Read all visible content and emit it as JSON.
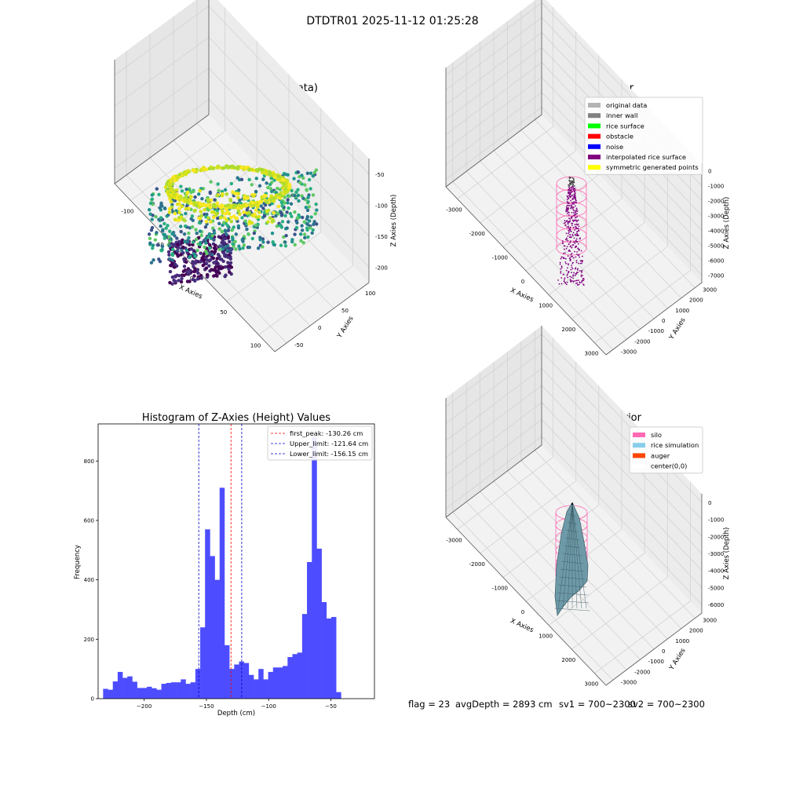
{
  "figure": {
    "suptitle": "DTDTR01 2025-11-12 01:25:28",
    "footer": {
      "flag": "flag = 23",
      "avg_depth": "avgDepth = 2893 cm",
      "sv1": "sv1 = 700~2300",
      "sv2": "sv2 = 700~2300"
    }
  },
  "chart_data": [
    {
      "type": "scatter",
      "projection": "3d",
      "title": "3D Plot of Silo Interior(row data)",
      "xlabel": "X Axies",
      "ylabel": "Y Axies",
      "zlabel": "Z Axies (Depth)",
      "x_ticks": [
        "-100",
        "-50",
        "0",
        "50",
        "100"
      ],
      "y_ticks": [
        "-50",
        "0",
        "50",
        "100"
      ],
      "z_ticks": [
        "-50",
        "-100",
        "-150",
        "-200"
      ],
      "colormap": "viridis (by depth)",
      "grid": true
    },
    {
      "type": "scatter",
      "projection": "3d",
      "title": "3D classify of Silo Interior",
      "xlabel": "X Axies",
      "ylabel": "Y Axies",
      "zlabel": "Z Axies (Depth)",
      "x_ticks": [
        "-3000",
        "-2000",
        "-1000",
        "0",
        "1000",
        "2000",
        "3000"
      ],
      "y_ticks": [
        "-3000",
        "-2000",
        "-1000",
        "0",
        "1000",
        "2000",
        "3000"
      ],
      "z_ticks": [
        "0",
        "-1000",
        "-2000",
        "-3000",
        "-4000",
        "-5000",
        "-6000",
        "-7000"
      ],
      "legend_position": "top-right",
      "legend": [
        {
          "label": "original data",
          "color": "#b3b3b3"
        },
        {
          "label": "inner wall",
          "color": "#808080"
        },
        {
          "label": "rice surface",
          "color": "#00ff00"
        },
        {
          "label": "obstacle",
          "color": "#ff0000"
        },
        {
          "label": "noise",
          "color": "#0000ff"
        },
        {
          "label": "interpolated rice surface",
          "color": "#800080"
        },
        {
          "label": "symmetric generated points",
          "color": "#ffff00"
        }
      ],
      "grid": true
    },
    {
      "type": "bar",
      "title": "Histogram of Z-Axies (Height) Values",
      "xlabel": "Depth (cm)",
      "ylabel": "Frequency",
      "xlim": [
        -237,
        -15
      ],
      "ylim": [
        0,
        925
      ],
      "x_ticks": [
        -200,
        -150,
        -100,
        -50
      ],
      "y_ticks": [
        0,
        200,
        400,
        600,
        800
      ],
      "bin_start": -233,
      "bin_width": 3.9,
      "values": [
        33,
        30,
        58,
        90,
        70,
        75,
        57,
        36,
        36,
        40,
        35,
        30,
        50,
        53,
        55,
        55,
        65,
        50,
        55,
        100,
        240,
        570,
        480,
        400,
        710,
        180,
        100,
        115,
        125,
        120,
        80,
        65,
        100,
        65,
        90,
        105,
        105,
        110,
        140,
        150,
        155,
        285,
        460,
        880,
        505,
        325,
        270,
        275,
        22
      ],
      "bar_color": "#4d4dff",
      "lines": [
        {
          "label": "first_peak: -130.26 cm",
          "x": -130.26,
          "color": "#ff0000"
        },
        {
          "label": "Upper_limit: -121.64 cm",
          "x": -121.64,
          "color": "#0000cc"
        },
        {
          "label": "Lower_limit: -156.15 cm",
          "x": -156.15,
          "color": "#0000cc"
        }
      ],
      "legend_position": "top-right",
      "grid": false
    },
    {
      "type": "surface",
      "projection": "3d",
      "title": "3D simulation of Silo Interior",
      "xlabel": "X Axies",
      "ylabel": "Y Axies",
      "zlabel": "Z Axies (Depth)",
      "x_ticks": [
        "-3000",
        "-2000",
        "-1000",
        "0",
        "1000",
        "2000",
        "3000"
      ],
      "y_ticks": [
        "-3000",
        "-2000",
        "-1000",
        "0",
        "1000",
        "2000",
        "3000"
      ],
      "z_ticks": [
        "0",
        "-1000",
        "-2000",
        "-3000",
        "-4000",
        "-5000",
        "-6000"
      ],
      "legend_position": "top-right",
      "legend": [
        {
          "label": "silo",
          "color": "#ff69b4"
        },
        {
          "label": "rice simulation",
          "color": "#87ceeb"
        },
        {
          "label": "auger",
          "color": "#ff4500"
        },
        {
          "label": "center(0,0)",
          "color": "#ffffff"
        }
      ],
      "grid": true
    }
  ]
}
